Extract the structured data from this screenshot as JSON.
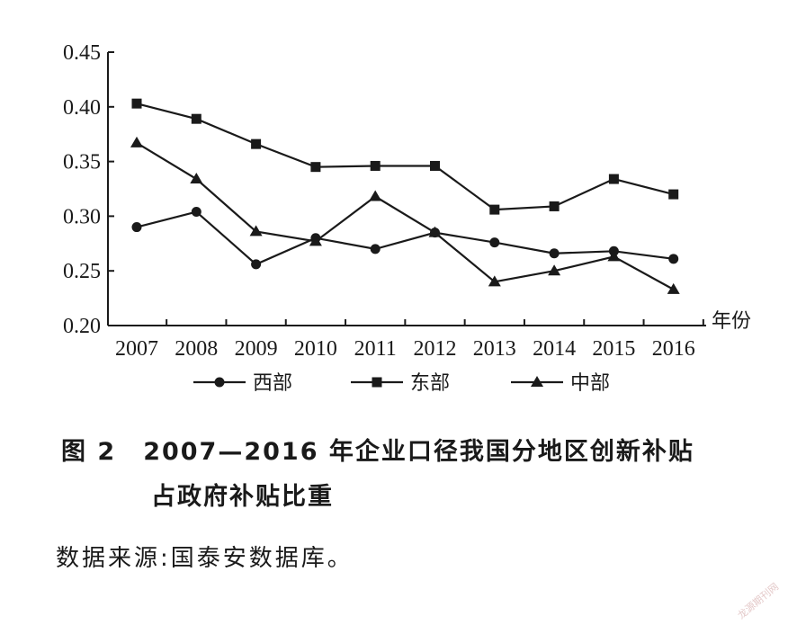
{
  "chart_data": {
    "type": "line",
    "x": [
      2007,
      2008,
      2009,
      2010,
      2011,
      2012,
      2013,
      2014,
      2015,
      2016
    ],
    "xlabel": "年份",
    "ylabel": "",
    "ylim": [
      0.2,
      0.45
    ],
    "yticks": [
      "0.20",
      "0.25",
      "0.30",
      "0.35",
      "0.40",
      "0.45"
    ],
    "series": [
      {
        "name": "西部",
        "marker": "circle",
        "values": [
          0.29,
          0.304,
          0.256,
          0.28,
          0.27,
          0.285,
          0.276,
          0.266,
          0.268,
          0.261
        ]
      },
      {
        "name": "东部",
        "marker": "square",
        "values": [
          0.403,
          0.389,
          0.366,
          0.345,
          0.346,
          0.346,
          0.306,
          0.309,
          0.334,
          0.32
        ]
      },
      {
        "name": "中部",
        "marker": "triangle",
        "values": [
          0.367,
          0.334,
          0.286,
          0.277,
          0.318,
          0.285,
          0.24,
          0.25,
          0.263,
          0.233
        ]
      }
    ],
    "legend_position": "bottom",
    "grid": false,
    "line_color": "#1a1a1a"
  },
  "caption": {
    "figure_number": "图 2",
    "title_line1": "2007—2016 年企业口径我国分地区创新补贴",
    "title_line2": "占政府补贴比重"
  },
  "source_note": "数据来源:国泰安数据库。",
  "watermark": "龙源期刊网"
}
